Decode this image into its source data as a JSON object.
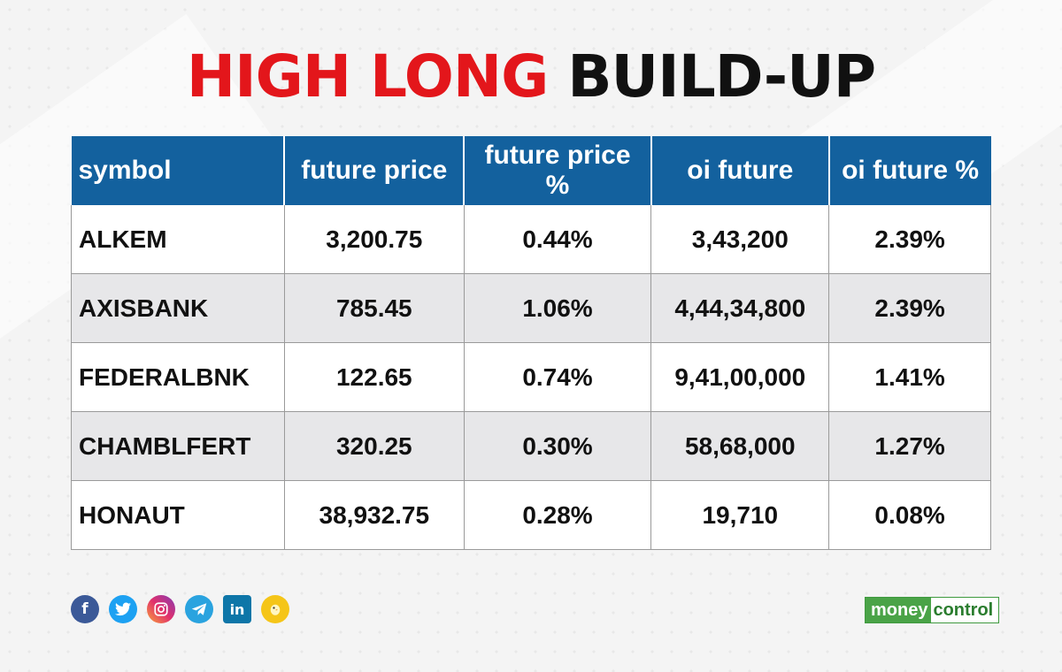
{
  "title": {
    "part_red": "HIGH LONG",
    "part_black": "BUILD-UP"
  },
  "table": {
    "headers": [
      "symbol",
      "future price",
      "future price %",
      "oi future",
      "oi future %"
    ],
    "rows": [
      [
        "ALKEM",
        "3,200.75",
        "0.44%",
        "3,43,200",
        "2.39%"
      ],
      [
        "AXISBANK",
        "785.45",
        "1.06%",
        "4,44,34,800",
        "2.39%"
      ],
      [
        "FEDERALBNK",
        "122.65",
        "0.74%",
        "9,41,00,000",
        "1.41%"
      ],
      [
        "CHAMBLFERT",
        "320.25",
        "0.30%",
        "58,68,000",
        "1.27%"
      ],
      [
        "HONAUT",
        "38,932.75",
        "0.28%",
        "19,710",
        "0.08%"
      ]
    ]
  },
  "colors": {
    "title_red": "#e3161b",
    "header_blue": "#13619e",
    "stripe_gray": "#e7e7e9",
    "logo_green": "#4aa347"
  },
  "social_icons": [
    {
      "name": "facebook-icon",
      "glyph": "f",
      "color": "#3b5998"
    },
    {
      "name": "twitter-icon",
      "glyph": "t",
      "color": "#1da1f2"
    },
    {
      "name": "instagram-icon",
      "glyph": "◎",
      "color": "#d6249f"
    },
    {
      "name": "telegram-icon",
      "glyph": "➤",
      "color": "#2aa3df"
    },
    {
      "name": "linkedin-icon",
      "glyph": "in",
      "color": "#0e76a8"
    },
    {
      "name": "koo-icon",
      "glyph": "◔",
      "color": "#f5c518"
    }
  ],
  "logo": {
    "part1": "money",
    "part2": "control"
  }
}
